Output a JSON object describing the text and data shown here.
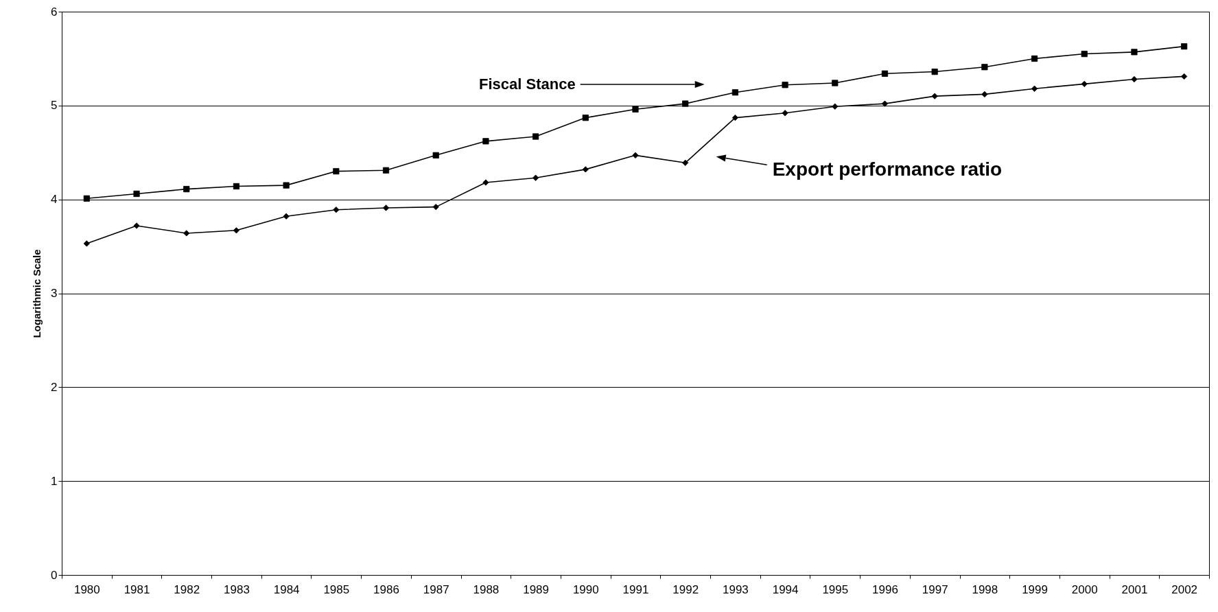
{
  "chart_data": {
    "type": "line",
    "ylabel": "Logarithmic Scale",
    "categories": [
      "1980",
      "1981",
      "1982",
      "1983",
      "1984",
      "1985",
      "1986",
      "1987",
      "1988",
      "1989",
      "1990",
      "1991",
      "1992",
      "1993",
      "1994",
      "1995",
      "1996",
      "1997",
      "1998",
      "1999",
      "2000",
      "2001",
      "2002"
    ],
    "series": [
      {
        "name": "Fiscal Stance",
        "color": "#000000",
        "marker": "square",
        "values": [
          4.01,
          4.06,
          4.11,
          4.14,
          4.15,
          4.3,
          4.31,
          4.47,
          4.62,
          4.67,
          4.87,
          4.96,
          5.02,
          5.14,
          5.22,
          5.24,
          5.34,
          5.36,
          5.41,
          5.5,
          5.55,
          5.57,
          5.63
        ]
      },
      {
        "name": "Export performance ratio",
        "color": "#000000",
        "marker": "diamond",
        "values": [
          3.53,
          3.72,
          3.64,
          3.67,
          3.82,
          3.89,
          3.91,
          3.92,
          4.18,
          4.23,
          4.32,
          4.47,
          4.39,
          4.87,
          4.92,
          4.99,
          5.02,
          5.1,
          5.12,
          5.18,
          5.23,
          5.28,
          5.31
        ]
      }
    ],
    "ylim": [
      0,
      6
    ],
    "yticks": [
      0,
      1,
      2,
      3,
      4,
      5,
      6
    ],
    "grid": "y"
  }
}
